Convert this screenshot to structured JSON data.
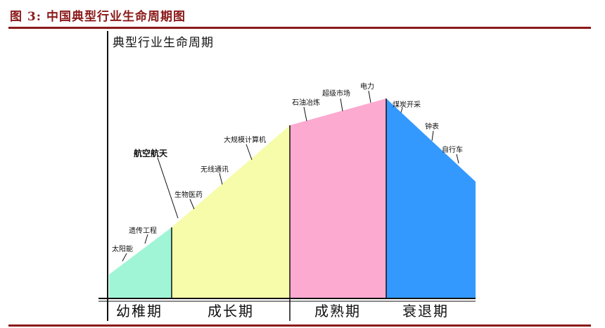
{
  "figure_title": "图 3:  中国典型行业生命周期图",
  "diagram_title": "典型行业生命周期",
  "stages": [
    {
      "label": "幼稚期",
      "color": "#9ff5d6"
    },
    {
      "label": "成长期",
      "color": "#f6fcaa"
    },
    {
      "label": "成熟期",
      "color": "#fcaad0"
    },
    {
      "label": "衰退期",
      "color": "#3399ff"
    }
  ],
  "industries": [
    {
      "label": "太阳能",
      "stage": "幼稚期"
    },
    {
      "label": "遗传工程",
      "stage": "幼稚期"
    },
    {
      "label": "航空航天",
      "stage": "幼稚期"
    },
    {
      "label": "生物医药",
      "stage": "成长期"
    },
    {
      "label": "无线通讯",
      "stage": "成长期"
    },
    {
      "label": "大规模计算机",
      "stage": "成长期"
    },
    {
      "label": "石油冶炼",
      "stage": "成熟期"
    },
    {
      "label": "超级市场",
      "stage": "成熟期"
    },
    {
      "label": "电力",
      "stage": "成熟期"
    },
    {
      "label": "煤炭开采",
      "stage": "衰退期"
    },
    {
      "label": "钟表",
      "stage": "衰退期"
    },
    {
      "label": "自行车",
      "stage": "衰退期"
    }
  ]
}
